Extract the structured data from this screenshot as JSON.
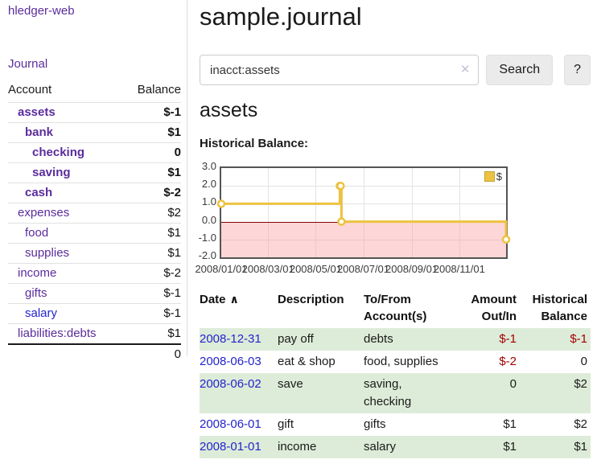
{
  "colors": {
    "accent_purple": "#5b2c9c",
    "link_blue": "#2324cc",
    "negative": "#a40000",
    "negative_muted": "#bd7d7d",
    "row_stripe_green": "#ddecd8",
    "series_gold": "#edc240",
    "chart_border": "#545454",
    "negative_region_pink": "#fad7d7",
    "zero_line_red": "#8b0000"
  },
  "sidebar": {
    "brand": "hledger-web",
    "nav": {
      "journal_label": "Journal"
    },
    "accounts_table": {
      "headers": {
        "account": "Account",
        "balance": "Balance"
      },
      "rows": [
        {
          "name": "assets",
          "level": 1,
          "emphasis": true,
          "tone": "purple",
          "balance": "$-1",
          "balance_tone": "negative"
        },
        {
          "name": "bank",
          "level": 2,
          "emphasis": true,
          "tone": "purple",
          "balance": "$1",
          "balance_tone": "normal"
        },
        {
          "name": "checking",
          "level": 3,
          "emphasis": true,
          "tone": "purple",
          "balance": "0",
          "balance_tone": "normal"
        },
        {
          "name": "saving",
          "level": 3,
          "emphasis": true,
          "tone": "purple",
          "balance": "$1",
          "balance_tone": "normal"
        },
        {
          "name": "cash",
          "level": 2,
          "emphasis": true,
          "tone": "purple",
          "balance": "$-2",
          "balance_tone": "negative"
        },
        {
          "name": "expenses",
          "level": 1,
          "emphasis": false,
          "tone": "purple",
          "balance": "$2",
          "balance_tone": "normal"
        },
        {
          "name": "food",
          "level": 2,
          "emphasis": false,
          "tone": "purple",
          "balance": "$1",
          "balance_tone": "normal"
        },
        {
          "name": "supplies",
          "level": 2,
          "emphasis": false,
          "tone": "purple",
          "balance": "$1",
          "balance_tone": "normal"
        },
        {
          "name": "income",
          "level": 1,
          "emphasis": false,
          "tone": "purple",
          "balance": "$-2",
          "balance_tone": "negative-muted"
        },
        {
          "name": "gifts",
          "level": 2,
          "emphasis": false,
          "tone": "purple",
          "balance": "$-1",
          "balance_tone": "negative-muted"
        },
        {
          "name": "salary",
          "level": 2,
          "emphasis": false,
          "tone": "blue",
          "balance": "$-1",
          "balance_tone": "negative-muted"
        },
        {
          "name": "liabilities:debts",
          "level": 1,
          "emphasis": false,
          "tone": "purple",
          "balance": "$1",
          "balance_tone": "normal"
        }
      ],
      "total": "0"
    }
  },
  "main": {
    "title": "sample.journal",
    "search": {
      "value": "inacct:assets",
      "clear_icon": "✕",
      "button_label": "Search",
      "help_label": "?"
    },
    "account_heading": "assets",
    "chart_heading": "Historical Balance:"
  },
  "chart_data": {
    "type": "line",
    "mode": "step",
    "title": "Historical Balance:",
    "grid": true,
    "legend_position": "top-right",
    "legend": [
      {
        "label": "$",
        "color": "#edc240"
      }
    ],
    "ylim": [
      -2,
      3
    ],
    "y_ticks": [
      {
        "label": "3.0",
        "value": 3
      },
      {
        "label": "2.0",
        "value": 2
      },
      {
        "label": "1.0",
        "value": 1
      },
      {
        "label": "0.0",
        "value": 0
      },
      {
        "label": "-1.0",
        "value": -1
      },
      {
        "label": "-2.0",
        "value": -2
      }
    ],
    "x_range_days": [
      0,
      365
    ],
    "x_ticks": [
      {
        "label": "2008/01/01",
        "day": 0
      },
      {
        "label": "2008/03/01",
        "day": 60
      },
      {
        "label": "2008/05/01",
        "day": 121
      },
      {
        "label": "2008/07/01",
        "day": 182
      },
      {
        "label": "2008/09/01",
        "day": 244
      },
      {
        "label": "2008/11/01",
        "day": 305
      }
    ],
    "series": [
      {
        "name": "$",
        "color": "#edc240",
        "points": [
          {
            "date": "2008-01-01",
            "day": 0,
            "value": 1
          },
          {
            "date": "2008-06-01",
            "day": 152,
            "value": 2
          },
          {
            "date": "2008-06-02",
            "day": 153,
            "value": 2
          },
          {
            "date": "2008-06-03",
            "day": 154,
            "value": 0
          },
          {
            "date": "2008-12-31",
            "day": 365,
            "value": -1
          }
        ]
      }
    ],
    "negative_region": true
  },
  "register_table": {
    "headers": {
      "date": "Date",
      "sort_icon": "∧",
      "description": "Description",
      "accounts": "To/From Account(s)",
      "amount": "Amount Out/In",
      "balance": "Historical Balance"
    },
    "rows": [
      {
        "date": "2008-12-31",
        "description": "pay off",
        "accounts": "debts",
        "amount": "$-1",
        "amount_tone": "negative",
        "balance": "$-1",
        "balance_tone": "negative",
        "striped": true
      },
      {
        "date": "2008-06-03",
        "description": "eat & shop",
        "accounts": "food, supplies",
        "amount": "$-2",
        "amount_tone": "negative",
        "balance": "0",
        "balance_tone": "normal",
        "striped": false
      },
      {
        "date": "2008-06-02",
        "description": "save",
        "accounts": "saving, checking",
        "amount": "0",
        "amount_tone": "normal",
        "balance": "$2",
        "balance_tone": "normal",
        "striped": true
      },
      {
        "date": "2008-06-01",
        "description": "gift",
        "accounts": "gifts",
        "amount": "$1",
        "amount_tone": "normal",
        "balance": "$2",
        "balance_tone": "normal",
        "striped": false
      },
      {
        "date": "2008-01-01",
        "description": "income",
        "accounts": "salary",
        "amount": "$1",
        "amount_tone": "normal",
        "balance": "$1",
        "balance_tone": "normal",
        "striped": true
      }
    ]
  }
}
